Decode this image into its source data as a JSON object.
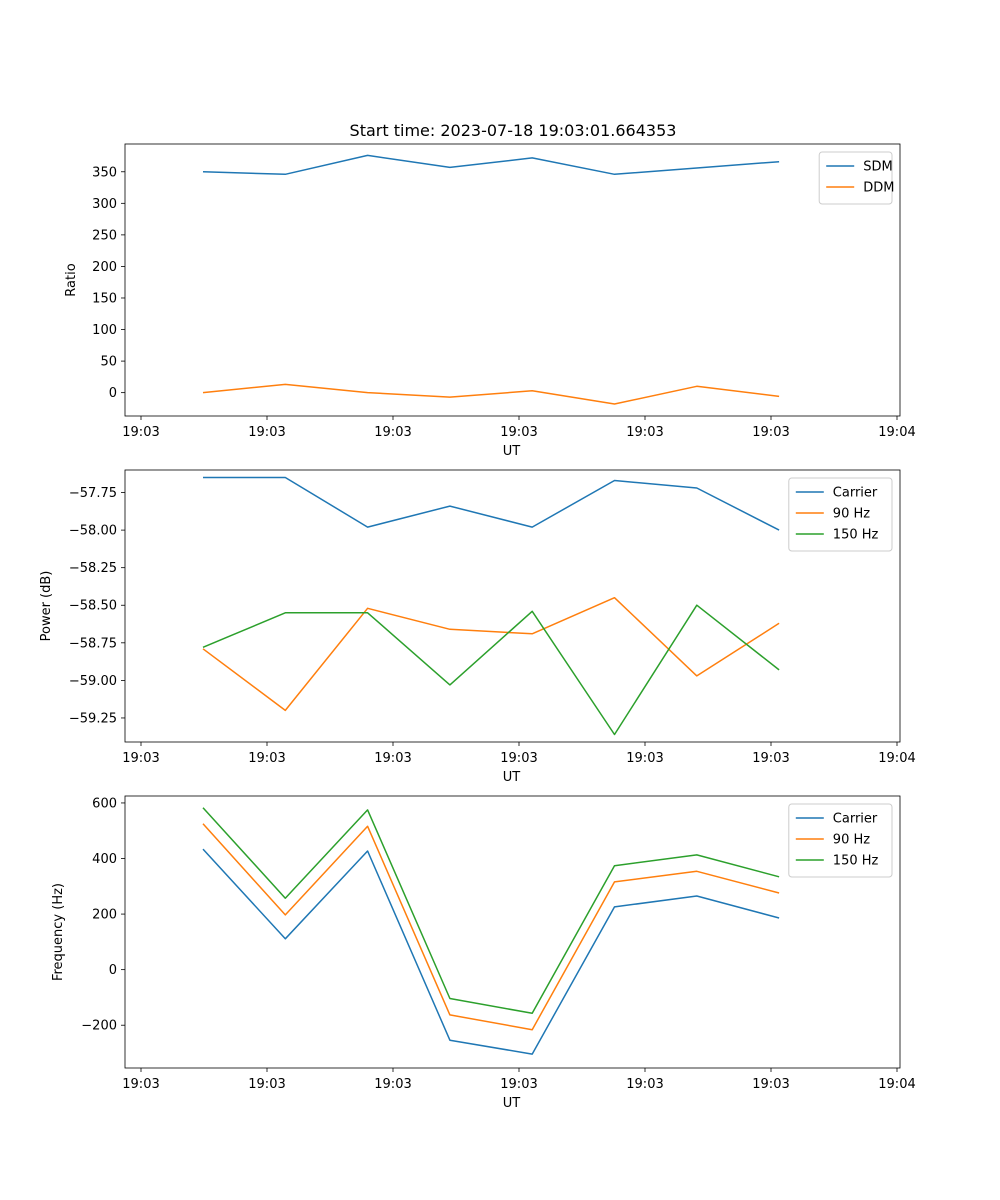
{
  "figure": {
    "title": "Start time: 2023-07-18 19:03:01.664353"
  },
  "chart_data": [
    {
      "type": "line",
      "title": "Start time: 2023-07-18 19:03:01.664353",
      "xlabel": "UT",
      "ylabel": "Ratio",
      "x_ticks": [
        "19:03",
        "19:03",
        "19:03",
        "19:03",
        "19:03",
        "19:03",
        "19:04"
      ],
      "y_ticks": [
        "0",
        "50",
        "100",
        "150",
        "200",
        "250",
        "300",
        "350"
      ],
      "ylim": [
        -37,
        394
      ],
      "y_tick_values": [
        0,
        50,
        100,
        150,
        200,
        250,
        300,
        350
      ],
      "x_index": [
        0,
        1,
        2,
        3,
        4,
        5,
        6,
        7
      ],
      "legend_position": "top-right",
      "series": [
        {
          "name": "SDM",
          "color": "#1f77b4",
          "values": [
            350,
            346,
            376,
            357,
            372,
            346,
            356,
            366
          ]
        },
        {
          "name": "DDM",
          "color": "#ff7f0e",
          "values": [
            0,
            13,
            0,
            -7,
            3,
            -18,
            10,
            -6
          ]
        }
      ]
    },
    {
      "type": "line",
      "title": "",
      "xlabel": "UT",
      "ylabel": "Power (dB)",
      "x_ticks": [
        "19:03",
        "19:03",
        "19:03",
        "19:03",
        "19:03",
        "19:03",
        "19:04"
      ],
      "y_ticks": [
        "−57.75",
        "−58.00",
        "−58.25",
        "−58.50",
        "−58.75",
        "−59.00",
        "−59.25"
      ],
      "ylim": [
        -59.41,
        -57.6
      ],
      "y_tick_values": [
        -57.75,
        -58.0,
        -58.25,
        -58.5,
        -58.75,
        -59.0,
        -59.25
      ],
      "x_index": [
        0,
        1,
        2,
        3,
        4,
        5,
        6,
        7
      ],
      "legend_position": "top-right",
      "series": [
        {
          "name": "Carrier",
          "color": "#1f77b4",
          "values": [
            -57.65,
            -57.65,
            -57.98,
            -57.84,
            -57.98,
            -57.67,
            -57.72,
            -58.0
          ]
        },
        {
          "name": "90 Hz",
          "color": "#ff7f0e",
          "values": [
            -58.79,
            -59.2,
            -58.52,
            -58.66,
            -58.69,
            -58.45,
            -58.97,
            -58.62
          ]
        },
        {
          "name": "150 Hz",
          "color": "#2ca02c",
          "values": [
            -58.78,
            -58.55,
            -58.55,
            -59.03,
            -58.54,
            -59.36,
            -58.5,
            -58.93
          ]
        }
      ]
    },
    {
      "type": "line",
      "title": "",
      "xlabel": "UT",
      "ylabel": "Frequency (Hz)",
      "x_ticks": [
        "19:03",
        "19:03",
        "19:03",
        "19:03",
        "19:03",
        "19:03",
        "19:04"
      ],
      "y_ticks": [
        "−200",
        "0",
        "200",
        "400",
        "600"
      ],
      "ylim": [
        -354,
        625
      ],
      "y_tick_values": [
        -200,
        0,
        200,
        400,
        600
      ],
      "x_index": [
        0,
        1,
        2,
        3,
        4,
        5,
        6,
        7
      ],
      "legend_position": "top-right",
      "series": [
        {
          "name": "Carrier",
          "color": "#1f77b4",
          "values": [
            434,
            111,
            427,
            -254,
            -304,
            226,
            265,
            186
          ]
        },
        {
          "name": "90 Hz",
          "color": "#ff7f0e",
          "values": [
            525,
            197,
            516,
            -163,
            -216,
            316,
            354,
            276
          ]
        },
        {
          "name": "150 Hz",
          "color": "#2ca02c",
          "values": [
            583,
            257,
            575,
            -104,
            -157,
            374,
            413,
            334
          ]
        }
      ]
    }
  ]
}
